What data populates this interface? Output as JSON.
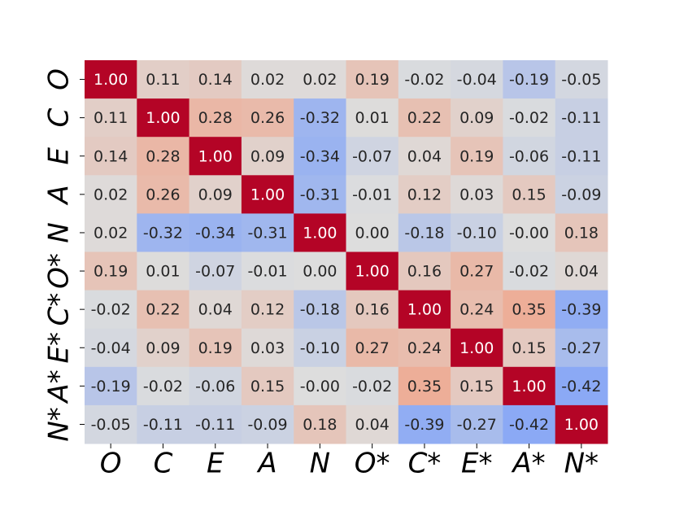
{
  "chart_data": {
    "type": "heatmap",
    "x_categories": [
      "O",
      "C",
      "E",
      "A",
      "N",
      "O*",
      "C*",
      "E*",
      "A*",
      "N*"
    ],
    "y_categories": [
      "O",
      "C",
      "E",
      "A",
      "N",
      "O*",
      "C*",
      "E*",
      "A*",
      "N*"
    ],
    "colormap": "coolwarm",
    "vlim": [
      -1,
      1
    ],
    "values": [
      [
        1.0,
        0.11,
        0.14,
        0.02,
        0.02,
        0.19,
        -0.02,
        -0.04,
        -0.19,
        -0.05
      ],
      [
        0.11,
        1.0,
        0.28,
        0.26,
        -0.32,
        0.01,
        0.22,
        0.09,
        -0.02,
        -0.11
      ],
      [
        0.14,
        0.28,
        1.0,
        0.09,
        -0.34,
        -0.07,
        0.04,
        0.19,
        -0.06,
        -0.11
      ],
      [
        0.02,
        0.26,
        0.09,
        1.0,
        -0.31,
        -0.01,
        0.12,
        0.03,
        0.15,
        -0.09
      ],
      [
        0.02,
        -0.32,
        -0.34,
        -0.31,
        1.0,
        0.0,
        -0.18,
        -0.1,
        0.0,
        0.18
      ],
      [
        0.19,
        0.01,
        -0.07,
        -0.01,
        0.0,
        1.0,
        0.16,
        0.27,
        -0.02,
        0.04
      ],
      [
        -0.02,
        0.22,
        0.04,
        0.12,
        -0.18,
        0.16,
        1.0,
        0.24,
        0.35,
        -0.39
      ],
      [
        -0.04,
        0.09,
        0.19,
        0.03,
        -0.1,
        0.27,
        0.24,
        1.0,
        0.15,
        -0.27
      ],
      [
        -0.19,
        -0.02,
        -0.06,
        0.15,
        0.0,
        -0.02,
        0.35,
        0.15,
        1.0,
        -0.42
      ],
      [
        -0.05,
        -0.11,
        -0.11,
        -0.09,
        0.18,
        0.04,
        -0.39,
        -0.27,
        -0.42,
        1.0
      ]
    ],
    "value_labels": [
      [
        "1.00",
        "0.11",
        "0.14",
        "0.02",
        "0.02",
        "0.19",
        "-0.02",
        "-0.04",
        "-0.19",
        "-0.05"
      ],
      [
        "0.11",
        "1.00",
        "0.28",
        "0.26",
        "-0.32",
        "0.01",
        "0.22",
        "0.09",
        "-0.02",
        "-0.11"
      ],
      [
        "0.14",
        "0.28",
        "1.00",
        "0.09",
        "-0.34",
        "-0.07",
        "0.04",
        "0.19",
        "-0.06",
        "-0.11"
      ],
      [
        "0.02",
        "0.26",
        "0.09",
        "1.00",
        "-0.31",
        "-0.01",
        "0.12",
        "0.03",
        "0.15",
        "-0.09"
      ],
      [
        "0.02",
        "-0.32",
        "-0.34",
        "-0.31",
        "1.00",
        "0.00",
        "-0.18",
        "-0.10",
        "-0.00",
        "0.18"
      ],
      [
        "0.19",
        "0.01",
        "-0.07",
        "-0.01",
        "0.00",
        "1.00",
        "0.16",
        "0.27",
        "-0.02",
        "0.04"
      ],
      [
        "-0.02",
        "0.22",
        "0.04",
        "0.12",
        "-0.18",
        "0.16",
        "1.00",
        "0.24",
        "0.35",
        "-0.39"
      ],
      [
        "-0.04",
        "0.09",
        "0.19",
        "0.03",
        "-0.10",
        "0.27",
        "0.24",
        "1.00",
        "0.15",
        "-0.27"
      ],
      [
        "-0.19",
        "-0.02",
        "-0.06",
        "0.15",
        "-0.00",
        "-0.02",
        "0.35",
        "0.15",
        "1.00",
        "-0.42"
      ],
      [
        "-0.05",
        "-0.11",
        "-0.11",
        "-0.09",
        "0.18",
        "0.04",
        "-0.39",
        "-0.27",
        "-0.42",
        "1.00"
      ]
    ]
  }
}
